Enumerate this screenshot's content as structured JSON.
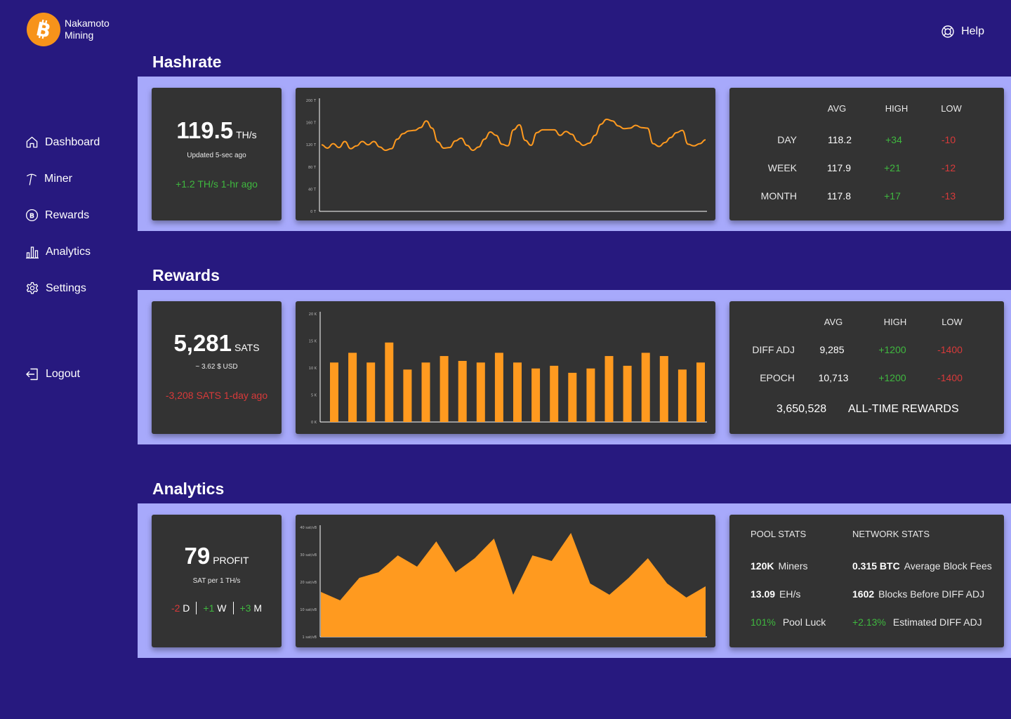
{
  "brand": {
    "name_line1": "Nakamoto",
    "name_line2": "Mining",
    "icon": "bitcoin-icon",
    "color": "#f7931a"
  },
  "nav": [
    {
      "label": "Dashboard",
      "icon": "home-icon"
    },
    {
      "label": "Miner",
      "icon": "pickaxe-icon"
    },
    {
      "label": "Rewards",
      "icon": "bitcoin-circle-icon"
    },
    {
      "label": "Analytics",
      "icon": "bar-chart-icon"
    },
    {
      "label": "Settings",
      "icon": "gear-icon"
    }
  ],
  "logout": {
    "label": "Logout",
    "icon": "logout-icon"
  },
  "help": {
    "label": "Help",
    "icon": "lifebuoy-icon"
  },
  "colors": {
    "background": "#27197f",
    "band": "#a7a9fb",
    "card": "#333333",
    "accent": "#ff9a1f",
    "positive": "#3fb83f",
    "negative": "#d93a3a"
  },
  "hashrate": {
    "title": "Hashrate",
    "value": "119.5",
    "unit": "TH/s",
    "updated": "Updated 5-sec ago",
    "delta": "+1.2 TH/s 1-hr ago",
    "table": {
      "headers": [
        "AVG",
        "HIGH",
        "LOW"
      ],
      "rows": [
        {
          "label": "DAY",
          "avg": "118.2",
          "high": "+34",
          "low": "-10"
        },
        {
          "label": "WEEK",
          "avg": "117.9",
          "high": "+21",
          "low": "-12"
        },
        {
          "label": "MONTH",
          "avg": "117.8",
          "high": "+17",
          "low": "-13"
        }
      ]
    }
  },
  "rewards": {
    "title": "Rewards",
    "value": "5,281",
    "unit": "SATS",
    "usd": "~ 3.62 $ USD",
    "delta": "-3,208 SATS 1-day ago",
    "table": {
      "headers": [
        "AVG",
        "HIGH",
        "LOW"
      ],
      "rows": [
        {
          "label": "DIFF ADJ",
          "avg": "9,285",
          "high": "+1200",
          "low": "-1400"
        },
        {
          "label": "EPOCH",
          "avg": "10,713",
          "high": "+1200",
          "low": "-1400"
        }
      ]
    },
    "all_time_value": "3,650,528",
    "all_time_label": "ALL-TIME REWARDS"
  },
  "analytics": {
    "title": "Analytics",
    "value": "79",
    "unit": "PROFIT",
    "sub": "SAT per 1 TH/s",
    "periods": [
      {
        "value": "-2",
        "label": "D"
      },
      {
        "value": "+1",
        "label": "W"
      },
      {
        "value": "+3",
        "label": "M"
      }
    ],
    "pool_heading": "POOL STATS",
    "network_heading": "NETWORK STATS",
    "pool": [
      {
        "value": "120K",
        "label": "Miners"
      },
      {
        "value": "13.09",
        "label": "EH/s"
      },
      {
        "value": "101%",
        "label": "Pool Luck"
      }
    ],
    "network": [
      {
        "value": "0.315 BTC",
        "label": "Average Block Fees"
      },
      {
        "value": "1602",
        "label": "Blocks Before DIFF ADJ"
      },
      {
        "value": "+2.13%",
        "label": "Estimated DIFF ADJ"
      }
    ]
  },
  "chart_data": [
    {
      "type": "line",
      "title": "Hashrate",
      "ylim": [
        0,
        200
      ],
      "ytick_labels": [
        "0 T",
        "40 T",
        "80 T",
        "120 T",
        "160 T",
        "200 T"
      ],
      "values": [
        120,
        114,
        122,
        115,
        126,
        113,
        118,
        126,
        120,
        126,
        116,
        110,
        113,
        130,
        140,
        145,
        146,
        151,
        163,
        150,
        125,
        114,
        115,
        127,
        132,
        119,
        110,
        116,
        130,
        143,
        137,
        121,
        118,
        147,
        156,
        128,
        119,
        142,
        147,
        147,
        147,
        137,
        144,
        139,
        126,
        119,
        123,
        137,
        157,
        166,
        163,
        154,
        149,
        150,
        155,
        151,
        150,
        122,
        117,
        124,
        133,
        142,
        146,
        121,
        118,
        122,
        129
      ]
    },
    {
      "type": "bar",
      "title": "Rewards",
      "ylim": [
        0,
        20
      ],
      "ytick_labels": [
        "0 K",
        "5 K",
        "10 K",
        "15 K",
        "20 K"
      ],
      "values": [
        11,
        12.8,
        11,
        14.7,
        9.7,
        11,
        12.2,
        11.3,
        11,
        12.8,
        11,
        9.9,
        10.4,
        9.1,
        9.9,
        12.2,
        10.4,
        12.8,
        12.2,
        9.7,
        11
      ]
    },
    {
      "type": "area",
      "title": "Analytics",
      "ylim": [
        1,
        40
      ],
      "ytick_labels": [
        "1 sat/vB",
        "10 sat/vB",
        "20 sat/vB",
        "30 sat/vB",
        "40 sat/vB"
      ],
      "values": [
        17,
        14,
        22,
        24,
        30,
        26,
        35,
        24,
        29,
        36,
        16,
        30,
        28,
        38,
        20,
        16,
        22,
        29,
        20,
        15,
        19
      ]
    }
  ]
}
